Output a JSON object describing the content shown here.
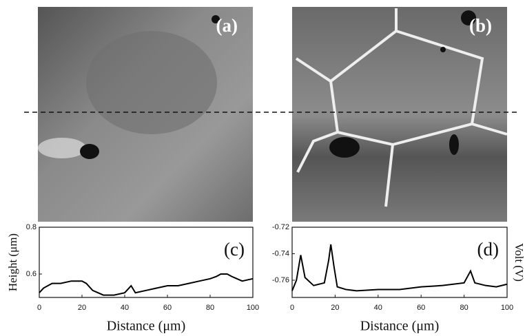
{
  "chart_data": [
    {
      "type": "image",
      "label": "(a)"
    },
    {
      "type": "image",
      "label": "(b)"
    },
    {
      "type": "line",
      "label": "(c)",
      "x_label": "Distance (μm)",
      "y_label": "Height (μm)",
      "x": [
        0,
        2,
        4,
        6,
        10,
        15,
        20,
        22,
        25,
        30,
        35,
        40,
        42,
        43,
        45,
        50,
        55,
        60,
        65,
        70,
        75,
        80,
        83,
        85,
        88,
        90,
        95,
        100
      ],
      "series": [
        {
          "color": "#000000",
          "values": [
            0.52,
            0.54,
            0.55,
            0.56,
            0.56,
            0.57,
            0.57,
            0.56,
            0.53,
            0.51,
            0.51,
            0.52,
            0.54,
            0.55,
            0.52,
            0.53,
            0.54,
            0.55,
            0.55,
            0.56,
            0.57,
            0.58,
            0.59,
            0.6,
            0.6,
            0.59,
            0.57,
            0.58
          ]
        }
      ],
      "xlim": [
        0,
        100
      ],
      "ylim": [
        0.5,
        0.8
      ],
      "xticks": [
        0,
        20,
        40,
        60,
        80,
        100
      ],
      "yticks": [
        0.6,
        0.8
      ]
    },
    {
      "type": "line",
      "label": "(d)",
      "x_label": "Distance (μm)",
      "y_label": "Volt (V)",
      "x": [
        0,
        2,
        4,
        6,
        10,
        15,
        17,
        18,
        19.5,
        21,
        25,
        30,
        40,
        50,
        60,
        70,
        80,
        83,
        85,
        90,
        95,
        100
      ],
      "series": [
        {
          "color": "#000000",
          "values": [
            -0.768,
            -0.76,
            -0.741,
            -0.758,
            -0.764,
            -0.762,
            -0.745,
            -0.733,
            -0.75,
            -0.765,
            -0.767,
            -0.768,
            -0.767,
            -0.767,
            -0.765,
            -0.764,
            -0.762,
            -0.753,
            -0.762,
            -0.764,
            -0.765,
            -0.763
          ]
        }
      ],
      "xlim": [
        0,
        100
      ],
      "ylim": [
        -0.773,
        -0.72
      ],
      "xticks": [
        0,
        20,
        40,
        60,
        80,
        100
      ],
      "yticks": [
        -0.76,
        -0.74,
        -0.72
      ]
    }
  ]
}
